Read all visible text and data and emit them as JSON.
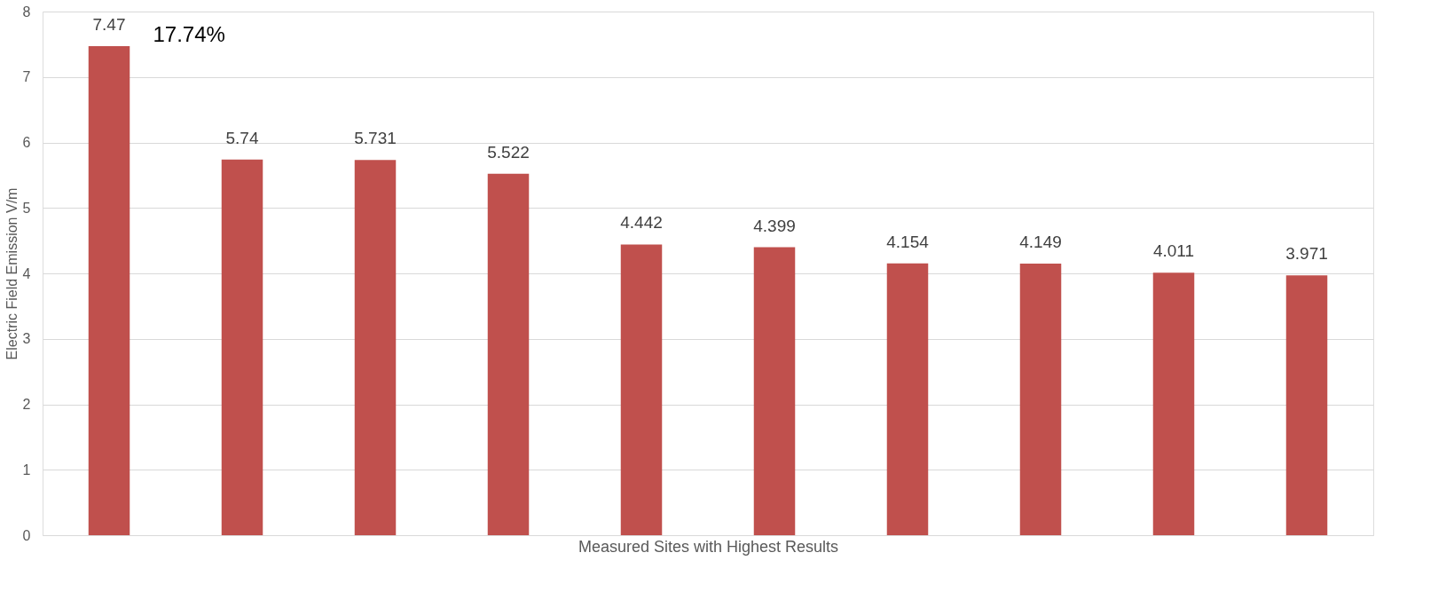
{
  "chart_data": {
    "type": "bar",
    "xlabel": "Measured Sites with Highest Results",
    "ylabel": "Electric Field Emission V/m",
    "categories": [
      null,
      null,
      null,
      null,
      null,
      null,
      null,
      null,
      null,
      null
    ],
    "values": [
      7.47,
      5.74,
      5.731,
      5.522,
      4.442,
      4.399,
      4.154,
      4.149,
      4.011,
      3.971
    ],
    "color": "#c0504d",
    "ylim": [
      0,
      8
    ],
    "yticks": [
      0,
      1,
      2,
      3,
      4,
      5,
      6,
      7,
      8
    ],
    "grid": "y",
    "data_labels": true,
    "tick_labels": "y",
    "annotations": [
      "17.74%"
    ]
  }
}
